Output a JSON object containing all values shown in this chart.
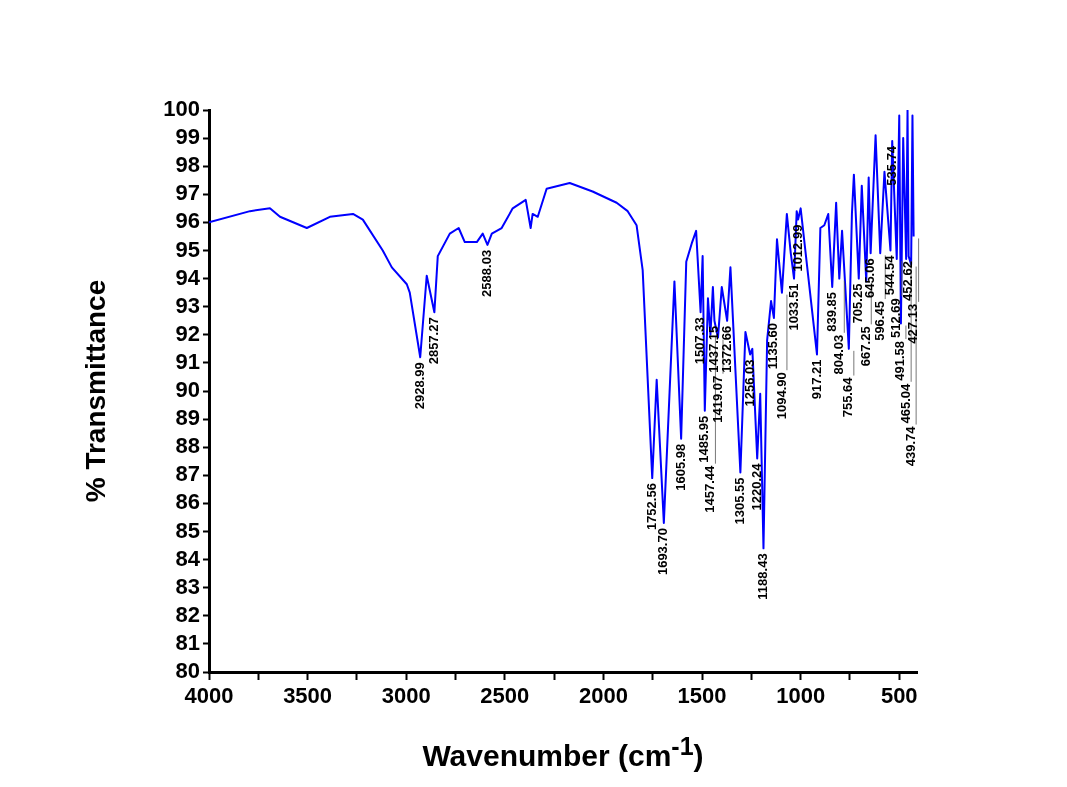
{
  "chart_data": {
    "type": "line",
    "xlabel": "Wavenumber (cm$^{-1}$)",
    "ylabel": "% Transmittance",
    "xlim": [
      4000,
      410
    ],
    "ylim": [
      80,
      100
    ],
    "xticks": [
      4000,
      {
        "value": 3750,
        "label": null
      },
      3500,
      {
        "value": 3250,
        "label": null
      },
      3000,
      {
        "value": 2750,
        "label": null
      },
      2500,
      {
        "value": 2250,
        "label": null
      },
      2000,
      {
        "value": 1750,
        "label": null
      },
      1500,
      {
        "value": 1250,
        "label": null
      },
      1000,
      {
        "value": 750,
        "label": null
      },
      500
    ],
    "yticks": [
      80,
      81,
      82,
      83,
      84,
      85,
      86,
      87,
      88,
      89,
      90,
      91,
      92,
      93,
      94,
      95,
      96,
      97,
      98,
      99,
      100
    ],
    "grid": false,
    "legend": false,
    "marker": "none",
    "line_style": "solid",
    "series": [
      {
        "color": "#0000ff",
        "x": [
          4000,
          3792,
          3691,
          3640,
          3504,
          3387,
          3270,
          3220,
          3119,
          3073,
          2997,
          2982,
          2928.99,
          2896,
          2857.27,
          2840,
          2779,
          2734,
          2703,
          2642,
          2612,
          2588.03,
          2566,
          2516,
          2460,
          2394,
          2369,
          2359,
          2333,
          2288,
          2171,
          2055,
          1933,
          1877,
          1832,
          1801,
          1752.56,
          1730,
          1693.7,
          1640,
          1605.98,
          1580,
          1550,
          1530,
          1507.33,
          1497,
          1485.95,
          1470,
          1457.44,
          1445,
          1437.15,
          1419.07,
          1400,
          1372.66,
          1356,
          1305.55,
          1280,
          1256.03,
          1245,
          1220.24,
          1205,
          1188.43,
          1170,
          1150,
          1135.6,
          1120,
          1094.9,
          1070,
          1050,
          1033.51,
          1020,
          1012.99,
          1000,
          917.21,
          900,
          880,
          860,
          839.85,
          820,
          804.03,
          790,
          755.64,
          740,
          730,
          705.25,
          690,
          667.25,
          655,
          645.06,
          620,
          596.45,
          575,
          544.54,
          535.74,
          512.69,
          500,
          491.58,
          480,
          465.04,
          458,
          452.62,
          439.74,
          433,
          427.13
        ],
        "values": [
          96.0,
          96.4,
          96.5,
          96.2,
          95.8,
          96.2,
          96.3,
          96.1,
          95.0,
          94.4,
          93.8,
          93.5,
          91.2,
          94.1,
          92.8,
          94.8,
          95.6,
          95.8,
          95.3,
          95.3,
          95.6,
          95.2,
          95.6,
          95.8,
          96.5,
          96.8,
          95.8,
          96.3,
          96.2,
          97.2,
          97.4,
          97.1,
          96.7,
          96.4,
          95.9,
          94.3,
          86.9,
          90.4,
          85.3,
          93.9,
          88.3,
          94.6,
          95.3,
          95.7,
          92.8,
          94.8,
          89.3,
          93.3,
          92.0,
          93.7,
          92.5,
          91.9,
          93.7,
          92.5,
          94.4,
          87.1,
          92.1,
          91.3,
          91.5,
          87.6,
          89.9,
          84.4,
          91.8,
          93.2,
          92.6,
          95.4,
          93.5,
          96.3,
          94.9,
          94.0,
          96.4,
          96.1,
          96.5,
          91.3,
          95.8,
          95.9,
          96.3,
          93.7,
          96.7,
          94.0,
          95.7,
          91.5,
          96.3,
          97.7,
          94.0,
          97.3,
          93.9,
          97.6,
          94.9,
          99.1,
          94.9,
          97.8,
          95.0,
          98.9,
          94.7,
          99.8,
          92.4,
          99.0,
          94.7,
          100,
          94.8,
          94.5,
          99.8,
          95.5
        ]
      }
    ],
    "annotations": [
      {
        "text": "2928.99",
        "x": 2928.99,
        "y": 91.2
      },
      {
        "text": "2857.27",
        "x": 2857.27,
        "y": 92.8
      },
      {
        "text": "2588.03",
        "x": 2588.03,
        "y": 95.2
      },
      {
        "text": "1752.56",
        "x": 1752.56,
        "y": 86.9
      },
      {
        "text": "1693.70",
        "x": 1693.7,
        "y": 85.3
      },
      {
        "text": "1605.98",
        "x": 1605.98,
        "y": 88.3
      },
      {
        "text": "1507.33",
        "x": 1507.33,
        "y": 92.8
      },
      {
        "text": "1485.95",
        "x": 1485.95,
        "y": 89.3
      },
      {
        "text": "1457.44",
        "x": 1457.44,
        "y": 92.0
      },
      {
        "text": "1437.15",
        "x": 1437.15,
        "y": 92.5
      },
      {
        "text": "1419.07",
        "x": 1419.07,
        "y": 91.9
      },
      {
        "text": "1372.66",
        "x": 1372.66,
        "y": 92.5
      },
      {
        "text": "1305.55",
        "x": 1305.55,
        "y": 87.1
      },
      {
        "text": "1256.03",
        "x": 1256.03,
        "y": 91.3
      },
      {
        "text": "1220.24",
        "x": 1220.24,
        "y": 87.6
      },
      {
        "text": "1188.43",
        "x": 1188.43,
        "y": 84.4
      },
      {
        "text": "1135.60",
        "x": 1135.6,
        "y": 92.6
      },
      {
        "text": "1094.90",
        "x": 1094.9,
        "y": 93.5
      },
      {
        "text": "1033.51",
        "x": 1033.51,
        "y": 94.0
      },
      {
        "text": "1012.99",
        "x": 1012.99,
        "y": 96.1
      },
      {
        "text": "917.21",
        "x": 917.21,
        "y": 91.3
      },
      {
        "text": "839.85",
        "x": 839.85,
        "y": 93.7
      },
      {
        "text": "804.03",
        "x": 804.03,
        "y": 94.0
      },
      {
        "text": "755.64",
        "x": 755.64,
        "y": 91.5
      },
      {
        "text": "705.25",
        "x": 705.25,
        "y": 94.0
      },
      {
        "text": "667.25",
        "x": 667.25,
        "y": 93.9
      },
      {
        "text": "645.06",
        "x": 645.06,
        "y": 94.9
      },
      {
        "text": "596.45",
        "x": 596.45,
        "y": 94.9
      },
      {
        "text": "544.54",
        "x": 544.54,
        "y": 95.0
      },
      {
        "text": "535.74",
        "x": 535.74,
        "y": 98.9
      },
      {
        "text": "512.69",
        "x": 512.69,
        "y": 94.7
      },
      {
        "text": "491.58",
        "x": 491.58,
        "y": 92.4
      },
      {
        "text": "465.04",
        "x": 465.04,
        "y": 94.7
      },
      {
        "text": "452.62",
        "x": 452.62,
        "y": 94.8
      },
      {
        "text": "439.74",
        "x": 439.74,
        "y": 94.5
      },
      {
        "text": "427.13",
        "x": 427.13,
        "y": 95.5
      }
    ]
  }
}
